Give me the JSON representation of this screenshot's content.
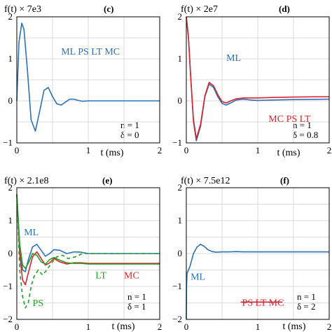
{
  "chart_data": [
    {
      "panel": "(c)",
      "type": "line",
      "ylabel": "f(t) × 7e3",
      "xlabel": "t (ms)",
      "xlim": [
        0,
        2
      ],
      "ylim": [
        -1,
        2
      ],
      "xticks": [
        "0",
        "1",
        "2"
      ],
      "yticks": [
        "2",
        "1",
        "0",
        "−1"
      ],
      "grid": true,
      "params": [
        "n = 1",
        "δ = 0"
      ],
      "series": [
        {
          "name": "ML PS LT MC",
          "color": "#2b72b8",
          "dash": "",
          "x": [
            0,
            0.03,
            0.07,
            0.1,
            0.15,
            0.2,
            0.26,
            0.32,
            0.38,
            0.44,
            0.5,
            0.56,
            0.62,
            0.68,
            0.74,
            0.8,
            0.86,
            0.92,
            1.0,
            1.2,
            1.5,
            2.0
          ],
          "y": [
            0,
            1.4,
            1.85,
            1.7,
            0.7,
            -0.45,
            -0.72,
            -0.25,
            0.25,
            0.32,
            0.1,
            -0.07,
            -0.1,
            -0.03,
            0.04,
            0.04,
            0.01,
            -0.01,
            0,
            0,
            0,
            0
          ]
        }
      ],
      "labels": [
        {
          "text": "ML PS LT MC",
          "color": "#2b72b8",
          "x": 0.62,
          "y": 1.1
        }
      ]
    },
    {
      "panel": "(d)",
      "type": "line",
      "ylabel": "f(t) × 2e7",
      "xlabel": "t (ms)",
      "xlim": [
        0,
        2
      ],
      "ylim": [
        -1,
        2
      ],
      "xticks": [
        "0",
        "1",
        "2"
      ],
      "yticks": [
        "2",
        "1",
        "0",
        "−1"
      ],
      "grid": true,
      "params": [
        "n = 1",
        "δ = 0.8"
      ],
      "series": [
        {
          "name": "ML",
          "color": "#2b72b8",
          "dash": "",
          "x": [
            0,
            0.03,
            0.06,
            0.1,
            0.14,
            0.2,
            0.26,
            0.32,
            0.38,
            0.44,
            0.5,
            0.56,
            0.62,
            0.7,
            0.8,
            0.9,
            1.0,
            1.2,
            1.5,
            2.0
          ],
          "y": [
            2.0,
            1.5,
            0.6,
            -0.5,
            -0.95,
            -0.6,
            0.1,
            0.4,
            0.32,
            0.1,
            -0.06,
            -0.1,
            -0.05,
            0.02,
            0.04,
            0.02,
            0.01,
            0.02,
            0.03,
            0.04
          ]
        },
        {
          "name": "MC PS LT",
          "color": "#e0202a",
          "dash": "",
          "x": [
            0,
            0.03,
            0.06,
            0.1,
            0.14,
            0.2,
            0.26,
            0.32,
            0.38,
            0.44,
            0.5,
            0.56,
            0.62,
            0.7,
            0.8,
            0.9,
            1.0,
            1.2,
            1.5,
            2.0
          ],
          "y": [
            2.0,
            1.5,
            0.62,
            -0.45,
            -0.9,
            -0.55,
            0.12,
            0.44,
            0.36,
            0.15,
            -0.02,
            -0.05,
            0.0,
            0.05,
            0.07,
            0.07,
            0.07,
            0.08,
            0.09,
            0.1
          ]
        }
      ],
      "labels": [
        {
          "text": "ML",
          "color": "#2b72b8",
          "x": 0.56,
          "y": 0.95
        },
        {
          "text": "MC PS LT",
          "color": "#e0202a",
          "x": 1.15,
          "y": -0.5
        }
      ]
    },
    {
      "panel": "(e)",
      "type": "line",
      "ylabel": "f(t) × 2.1e8",
      "xlabel": "t (ms)",
      "xlim": [
        0,
        2
      ],
      "ylim": [
        -2,
        2
      ],
      "xticks": [
        "0",
        "1",
        "2"
      ],
      "yticks": [
        "2",
        "1",
        "0",
        "−1",
        "−2"
      ],
      "grid": true,
      "params": [
        "n = 1",
        "δ = 1"
      ],
      "series": [
        {
          "name": "ML",
          "color": "#2b72b8",
          "dash": "",
          "x": [
            0,
            0.04,
            0.08,
            0.12,
            0.16,
            0.22,
            0.28,
            0.34,
            0.4,
            0.46,
            0.52,
            0.6,
            0.7,
            0.8,
            0.9,
            1.0,
            1.2,
            1.5,
            2.0
          ],
          "y": [
            1.8,
            0.2,
            -0.5,
            -0.55,
            -0.2,
            0.2,
            0.28,
            0.1,
            -0.08,
            0.0,
            0.12,
            0.1,
            0.0,
            0.05,
            0.04,
            0.0,
            0.0,
            0.0,
            0.0
          ]
        },
        {
          "name": "MC",
          "color": "#e0202a",
          "dash": "",
          "x": [
            0,
            0.04,
            0.08,
            0.12,
            0.16,
            0.22,
            0.28,
            0.34,
            0.4,
            0.46,
            0.52,
            0.6,
            0.7,
            0.8,
            0.9,
            1.0,
            1.2,
            1.5,
            2.0
          ],
          "y": [
            1.8,
            0.0,
            -0.8,
            -0.95,
            -0.6,
            -0.1,
            0.05,
            -0.15,
            -0.35,
            -0.28,
            -0.15,
            -0.25,
            -0.32,
            -0.28,
            -0.28,
            -0.3,
            -0.3,
            -0.3,
            -0.3
          ]
        },
        {
          "name": "LT",
          "color": "#22a02a",
          "dash": "",
          "x": [
            0,
            0.04,
            0.08,
            0.12,
            0.16,
            0.22,
            0.28,
            0.34,
            0.4,
            0.46,
            0.52,
            0.6,
            0.7,
            0.8,
            0.9,
            1.0,
            1.2,
            1.5,
            2.0
          ],
          "y": [
            1.8,
            0.3,
            -0.35,
            -0.45,
            -0.3,
            0.0,
            -0.05,
            -0.25,
            -0.32,
            -0.18,
            -0.12,
            -0.2,
            -0.28,
            -0.3,
            -0.3,
            -0.32,
            -0.32,
            -0.32,
            -0.32
          ]
        },
        {
          "name": "PS",
          "color": "#22a02a",
          "dash": "5,4",
          "x": [
            0,
            0.04,
            0.08,
            0.12,
            0.16,
            0.2,
            0.24,
            0.3,
            0.36,
            0.42,
            0.48,
            0.56,
            0.64,
            0.72,
            0.82,
            0.92,
            1.0,
            1.2,
            1.5,
            2.0
          ],
          "y": [
            1.8,
            -0.5,
            -1.3,
            -1.65,
            -1.5,
            -1.0,
            -0.7,
            -0.5,
            -0.65,
            -0.5,
            -0.3,
            -0.1,
            -0.05,
            -0.15,
            -0.1,
            0.0,
            0.0,
            0.0,
            0.0,
            0.0
          ]
        }
      ],
      "labels": [
        {
          "text": "ML",
          "color": "#2b72b8",
          "x": 0.1,
          "y": 0.55
        },
        {
          "text": "PS",
          "color": "#22a02a",
          "x": 0.22,
          "y": -1.6
        },
        {
          "text": "LT",
          "color": "#22a02a",
          "x": 1.1,
          "y": -0.75
        },
        {
          "text": "MC",
          "color": "#e0202a",
          "x": 1.5,
          "y": -0.75
        }
      ]
    },
    {
      "panel": "(f)",
      "type": "line",
      "ylabel": "f(t) × 7.5e12",
      "xlabel": "t (ms)",
      "xlim": [
        0,
        2
      ],
      "ylim": [
        -2,
        2
      ],
      "xticks": [
        "0",
        "1",
        "2"
      ],
      "yticks": [
        "2",
        "1",
        "0",
        "−1",
        "−2"
      ],
      "grid": true,
      "params": [
        "n = 1",
        "δ = 2"
      ],
      "series": [
        {
          "name": "ML",
          "color": "#2b72b8",
          "dash": "",
          "x": [
            0,
            0.003,
            0.01,
            0.05,
            0.1,
            0.15,
            0.2,
            0.25,
            0.3,
            0.36,
            0.42,
            0.5,
            0.6,
            0.7,
            0.8,
            1.0,
            1.5,
            2.0
          ],
          "y": [
            -2.0,
            -1.0,
            -0.6,
            -0.4,
            0.0,
            0.2,
            0.28,
            0.22,
            0.12,
            0.06,
            0.04,
            0.05,
            0.05,
            0.06,
            0.05,
            0.05,
            0.05,
            0.05
          ]
        }
      ],
      "labels": [
        {
          "text": "ML",
          "color": "#2b72b8",
          "x": 0.06,
          "y": -0.8
        },
        {
          "text": "PS LT MC",
          "color": "#e0202a",
          "x": 0.78,
          "y": -1.58,
          "strike": true
        }
      ]
    }
  ]
}
